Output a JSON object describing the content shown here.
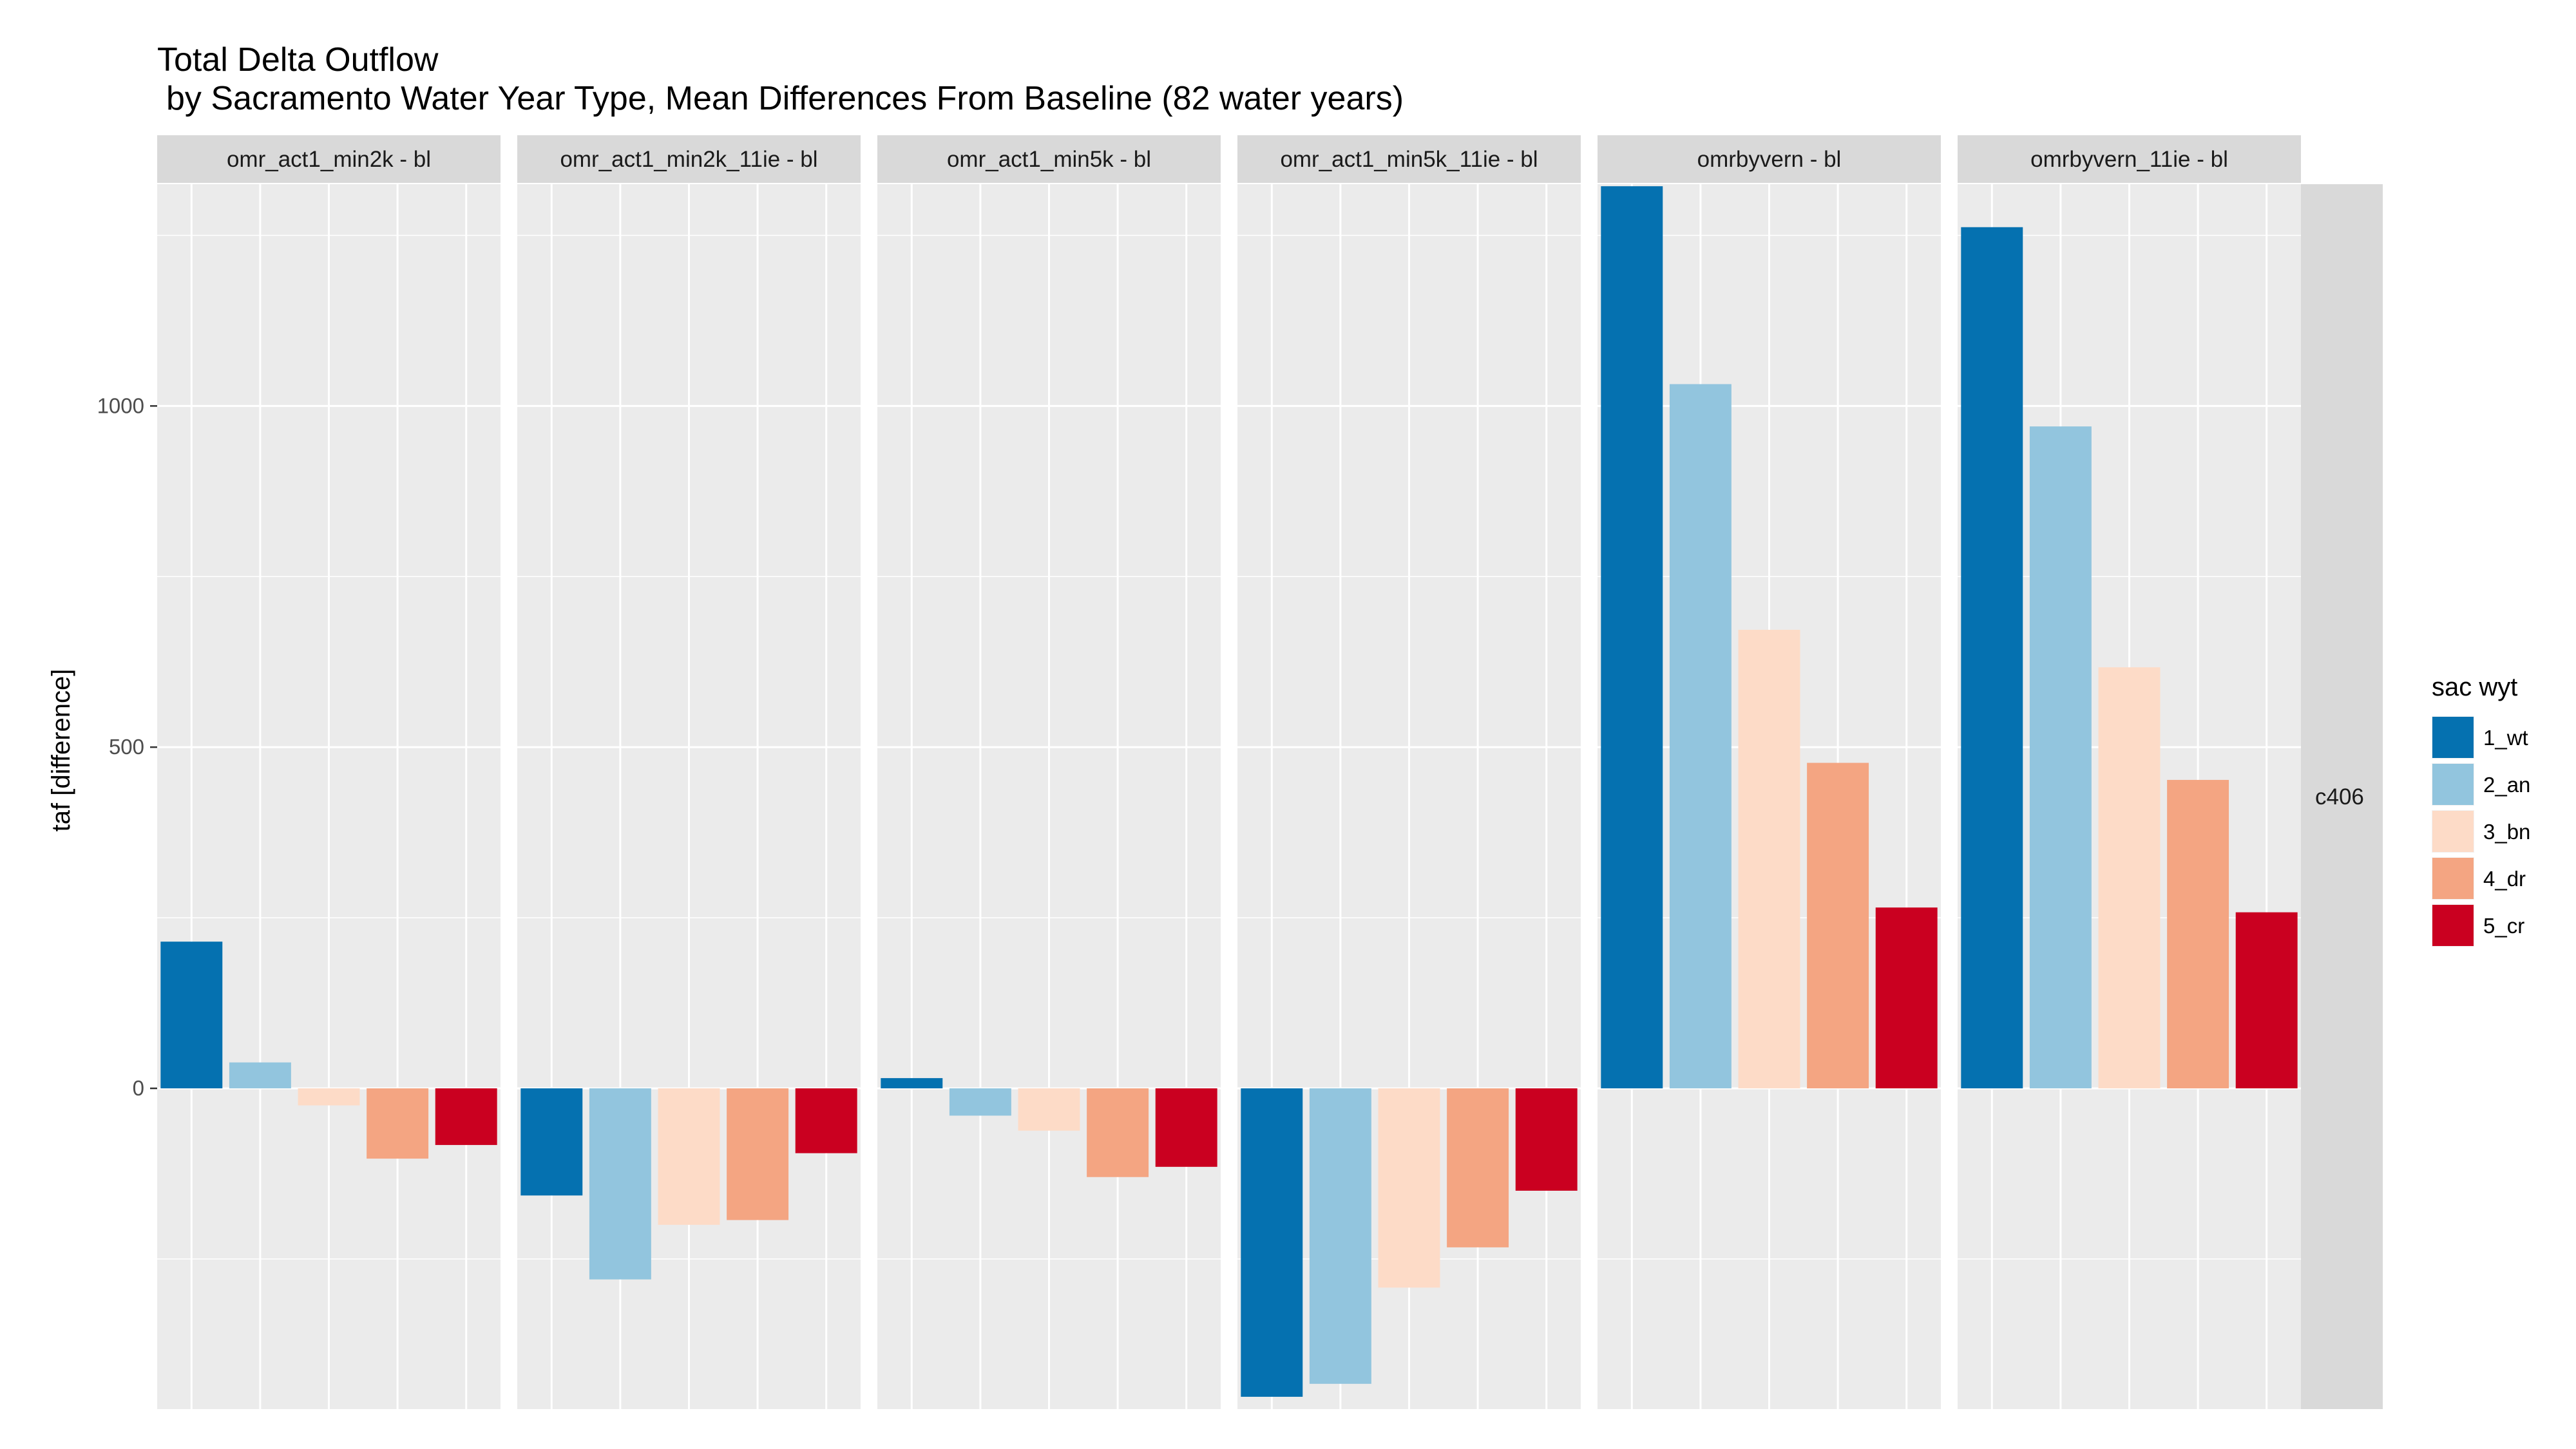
{
  "chart_data": {
    "type": "bar",
    "title": "Total Delta Outflow",
    "subtitle": "by Sacramento Water Year Type, Mean Differences From Baseline (82 water years)",
    "ylabel": "taf [difference]",
    "xlabel": "",
    "ylim": [
      -470,
      1325
    ],
    "yticks": [
      0,
      500,
      1000
    ],
    "grid": true,
    "legend_title": "sac wyt",
    "legend_position": "right",
    "row_facet_label": "c406",
    "categories": [
      "1_wt",
      "2_an",
      "3_bn",
      "4_dr",
      "5_cr"
    ],
    "colors": {
      "1_wt": "#0571b0",
      "2_an": "#92c5de",
      "3_bn": "#fddbc7",
      "4_dr": "#f4a582",
      "5_cr": "#ca0020"
    },
    "panels": [
      {
        "name": "omr_act1_min2k - bl",
        "values": [
          215,
          38,
          -25,
          -103,
          -83
        ]
      },
      {
        "name": "omr_act1_min2k_11ie - bl",
        "values": [
          -157,
          -280,
          -200,
          -193,
          -95
        ]
      },
      {
        "name": "omr_act1_min5k - bl",
        "values": [
          15,
          -40,
          -62,
          -130,
          -115
        ]
      },
      {
        "name": "omr_act1_min5k_11ie - bl",
        "values": [
          -452,
          -433,
          -292,
          -233,
          -150
        ]
      },
      {
        "name": "omrbyvern - bl",
        "values": [
          1322,
          1032,
          672,
          477,
          265
        ]
      },
      {
        "name": "omrbyvern_11ie - bl",
        "values": [
          1262,
          970,
          617,
          452,
          258
        ]
      }
    ]
  }
}
